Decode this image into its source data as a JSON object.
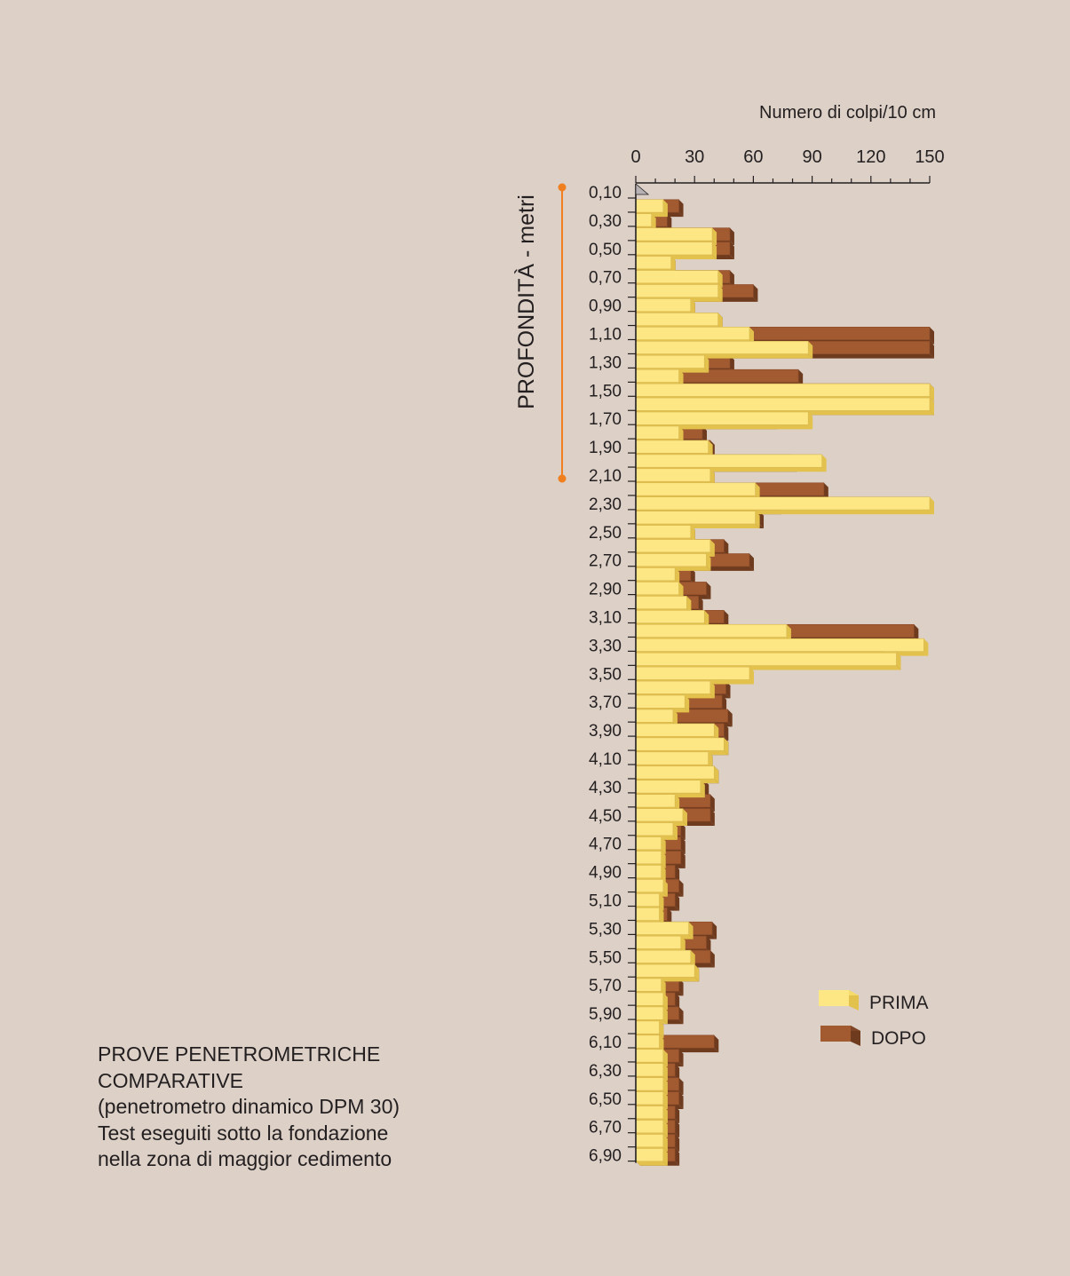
{
  "chart_data": {
    "type": "bar",
    "orientation": "horizontal",
    "xlabel": "Numero di colpi/10 cm",
    "ylabel": "PROFONDITÀ - metri",
    "xlim": [
      0,
      150
    ],
    "x_ticks": [
      0,
      30,
      60,
      90,
      120,
      150
    ],
    "depth_labels": [
      "0,10",
      "0,30",
      "0,50",
      "0,70",
      "0,90",
      "1,10",
      "1,30",
      "1,50",
      "1,70",
      "1,90",
      "2,10",
      "2,30",
      "2,50",
      "2,70",
      "2,90",
      "3,10",
      "3,30",
      "3,50",
      "3,70",
      "3,90",
      "4,10",
      "4,30",
      "4,50",
      "4,70",
      "4,90",
      "5,10",
      "5,30",
      "5,50",
      "5,70",
      "5,90",
      "6,10",
      "6,30",
      "6,50",
      "6,70",
      "6,90"
    ],
    "depths": [
      0.1,
      0.2,
      0.3,
      0.4,
      0.5,
      0.6,
      0.7,
      0.8,
      0.9,
      1.0,
      1.1,
      1.2,
      1.3,
      1.4,
      1.5,
      1.6,
      1.7,
      1.8,
      1.9,
      2.0,
      2.1,
      2.2,
      2.3,
      2.4,
      2.5,
      2.6,
      2.7,
      2.8,
      2.9,
      3.0,
      3.1,
      3.2,
      3.3,
      3.4,
      3.5,
      3.6,
      3.7,
      3.8,
      3.9,
      4.0,
      4.1,
      4.2,
      4.3,
      4.4,
      4.5,
      4.6,
      4.7,
      4.8,
      4.9,
      5.0,
      5.1,
      5.2,
      5.3,
      5.4,
      5.5,
      5.6,
      5.7,
      5.8,
      5.9,
      6.0,
      6.1,
      6.2,
      6.3,
      6.4,
      6.5,
      6.6,
      6.7,
      6.8,
      6.9
    ],
    "series": [
      {
        "name": "PRIMA",
        "color": "#fce784",
        "values": [
          0,
          14,
          8,
          39,
          39,
          18,
          42,
          42,
          28,
          42,
          58,
          88,
          35,
          22,
          150,
          150,
          88,
          22,
          37,
          95,
          38,
          61,
          150,
          61,
          28,
          38,
          36,
          20,
          22,
          26,
          35,
          77,
          147,
          133,
          58,
          38,
          25,
          19,
          40,
          45,
          37,
          40,
          33,
          20,
          24,
          19,
          13,
          13,
          13,
          14,
          12,
          12,
          27,
          23,
          28,
          30,
          13,
          14,
          14,
          12,
          12,
          14,
          14,
          14,
          14,
          14,
          14,
          14,
          14
        ]
      },
      {
        "name": "DOPO",
        "color": "#a25a30",
        "values": [
          0,
          22,
          16,
          48,
          48,
          18,
          48,
          60,
          28,
          42,
          150,
          150,
          48,
          83,
          150,
          150,
          70,
          34,
          38,
          80,
          38,
          96,
          72,
          63,
          28,
          45,
          58,
          28,
          36,
          32,
          45,
          142,
          124,
          133,
          45,
          46,
          44,
          47,
          45,
          45,
          37,
          40,
          35,
          38,
          38,
          23,
          23,
          23,
          20,
          22,
          20,
          16,
          39,
          36,
          38,
          30,
          22,
          20,
          22,
          12,
          40,
          22,
          20,
          22,
          22,
          20,
          20,
          20,
          20
        ]
      }
    ],
    "legend": [
      "PRIMA",
      "DOPO"
    ],
    "legend_position": "bottom-right",
    "grid": false
  },
  "caption": {
    "line1": "PROVE PENETROMETRICHE",
    "line2": "COMPARATIVE",
    "line3": "(penetrometro dinamico DPM 30)",
    "line4": "Test eseguiti sotto la fondazione",
    "line5": "nella zona di maggior cedimento"
  },
  "colors": {
    "background": "#dcd0c7",
    "prima_face": "#fce784",
    "prima_side": "#e3c14d",
    "dopo_face": "#a25a30",
    "dopo_side": "#6e3b1f",
    "marker": "#f07f20"
  }
}
